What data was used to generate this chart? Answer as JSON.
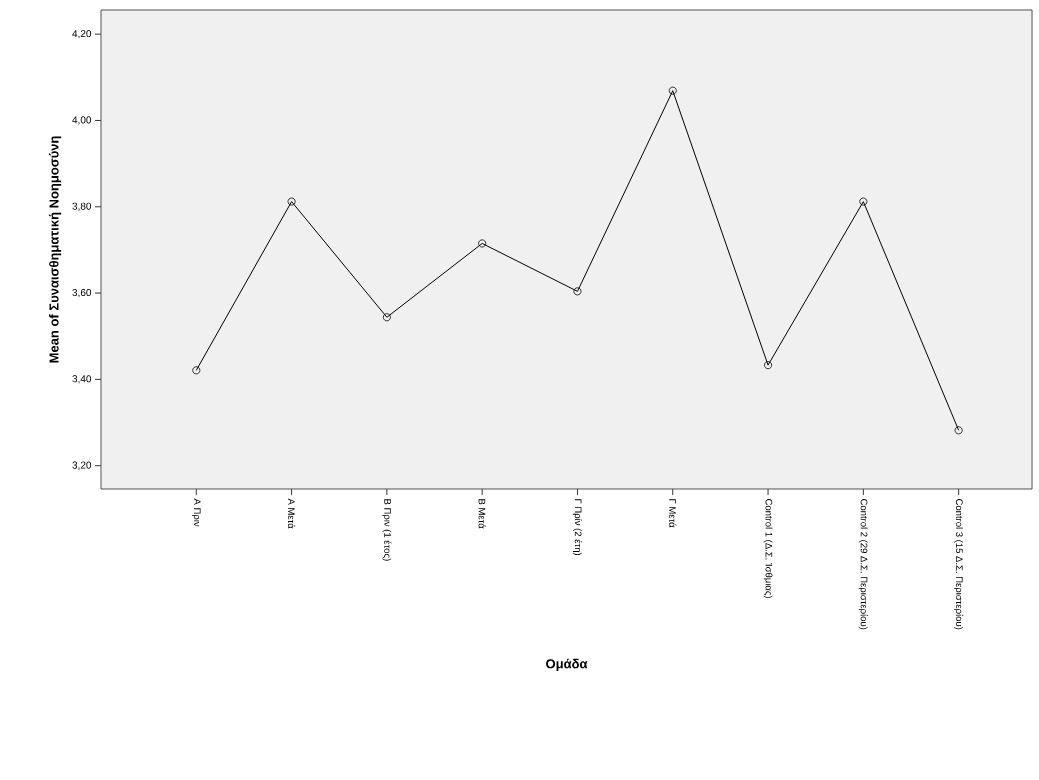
{
  "chart_data": {
    "type": "line",
    "xlabel": "Ομάδα",
    "ylabel": "Mean of Συναισθηματική Νοημοσύνη",
    "categories": [
      "Α Πριν",
      "Α Μετά",
      "Β Πριν (1 έτος)",
      "Β Μετά",
      "Γ Πρίν (2 έτη)",
      "Γ Μετά",
      "Control 1 (Δ.Σ. Ίσθμιας)",
      "Control 2 (29 Δ.Σ. Περιστερίου)",
      "Control 3 (15 Δ.Σ. Περιστερίου)"
    ],
    "values": [
      3.421,
      3.812,
      3.544,
      3.715,
      3.604,
      4.069,
      3.433,
      3.812,
      3.282
    ],
    "color": "#000000",
    "marker": "circle",
    "line_style": "solid",
    "grid": false,
    "ylim": [
      3.146,
      4.256
    ],
    "yticks": [
      {
        "value": 3.2,
        "label": "3,20"
      },
      {
        "value": 3.4,
        "label": "3,40"
      },
      {
        "value": 3.6,
        "label": "3,60"
      },
      {
        "value": 3.8,
        "label": "3,80"
      },
      {
        "value": 4.0,
        "label": "4,00"
      },
      {
        "value": 4.2,
        "label": "4,20"
      }
    ]
  }
}
